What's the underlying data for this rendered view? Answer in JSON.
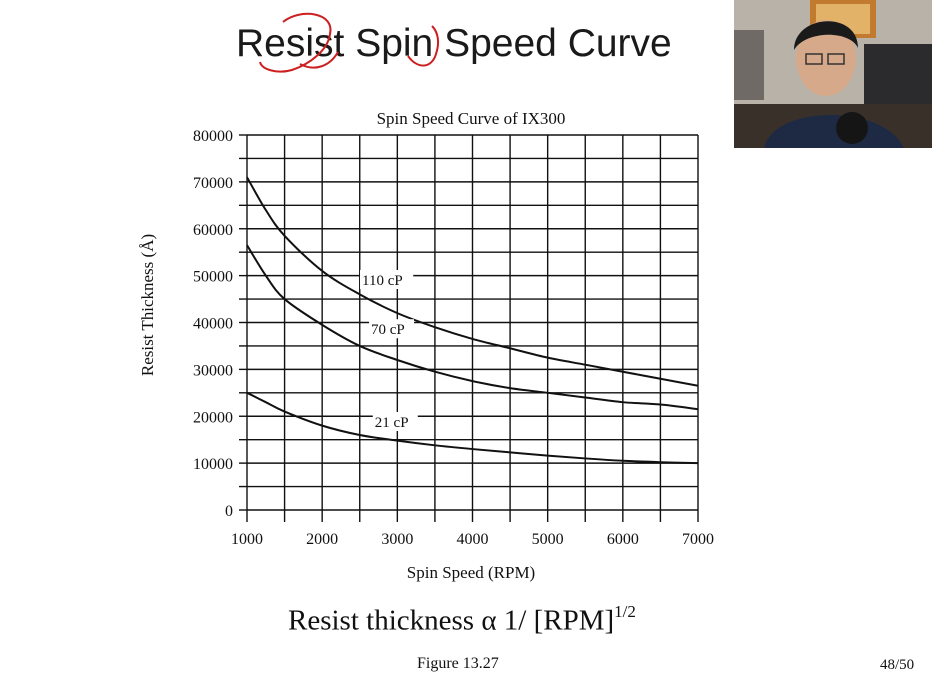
{
  "slide": {
    "title": "Resist Spin Speed Curve",
    "formula_prefix": "Resist thickness α 1/ [RPM]",
    "formula_exponent": "1/2",
    "figure_caption": "Figure 13.27",
    "page_number": "48/50"
  },
  "chart_data": {
    "type": "line",
    "title": "Spin Speed Curve of IX300",
    "xlabel": "Spin Speed (RPM)",
    "ylabel": "Resist Thickness (Å)",
    "xlim": [
      1000,
      7000
    ],
    "ylim": [
      0,
      80000
    ],
    "xticks": [
      1000,
      2000,
      3000,
      4000,
      5000,
      6000,
      7000
    ],
    "yticks": [
      0,
      10000,
      20000,
      30000,
      40000,
      50000,
      60000,
      70000,
      80000
    ],
    "grid": true,
    "series": [
      {
        "name": "110 cP",
        "x": [
          1000,
          1250,
          1500,
          2000,
          2500,
          3000,
          3500,
          4000,
          4500,
          5000,
          5500,
          6000,
          6500,
          7000
        ],
        "y": [
          71000,
          64000,
          58500,
          51000,
          46000,
          42000,
          39000,
          36500,
          34500,
          32500,
          31000,
          29500,
          28000,
          26500
        ]
      },
      {
        "name": "70 cP",
        "x": [
          1000,
          1250,
          1500,
          2000,
          2500,
          3000,
          3500,
          4000,
          4500,
          5000,
          5500,
          6000,
          6500,
          7000
        ],
        "y": [
          56500,
          50000,
          45000,
          39500,
          35000,
          32000,
          29500,
          27500,
          26000,
          25000,
          24000,
          23000,
          22500,
          21500
        ]
      },
      {
        "name": "21 cP",
        "x": [
          1000,
          1250,
          1500,
          2000,
          2500,
          3000,
          3500,
          4000,
          4500,
          5000,
          5500,
          6000,
          6500,
          7000
        ],
        "y": [
          25000,
          23000,
          21000,
          18000,
          16000,
          14800,
          13800,
          13000,
          12300,
          11600,
          11000,
          10500,
          10200,
          10000
        ]
      }
    ]
  }
}
